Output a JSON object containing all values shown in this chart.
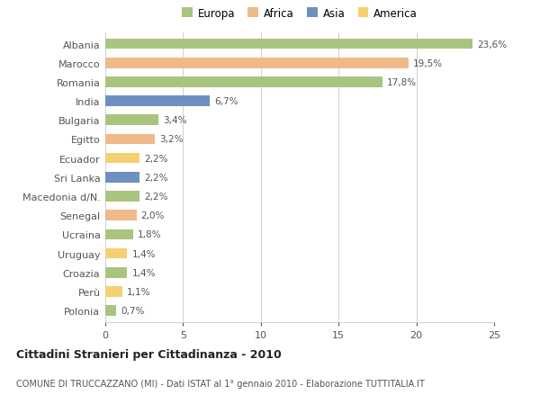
{
  "categories": [
    "Albania",
    "Marocco",
    "Romania",
    "India",
    "Bulgaria",
    "Egitto",
    "Ecuador",
    "Sri Lanka",
    "Macedonia d/N.",
    "Senegal",
    "Ucraina",
    "Uruguay",
    "Croazia",
    "Perù",
    "Polonia"
  ],
  "values": [
    23.6,
    19.5,
    17.8,
    6.7,
    3.4,
    3.2,
    2.2,
    2.2,
    2.2,
    2.0,
    1.8,
    1.4,
    1.4,
    1.1,
    0.7
  ],
  "labels": [
    "23,6%",
    "19,5%",
    "17,8%",
    "6,7%",
    "3,4%",
    "3,2%",
    "2,2%",
    "2,2%",
    "2,2%",
    "2,0%",
    "1,8%",
    "1,4%",
    "1,4%",
    "1,1%",
    "0,7%"
  ],
  "continents": [
    "Europa",
    "Africa",
    "Europa",
    "Asia",
    "Europa",
    "Africa",
    "America",
    "Asia",
    "Europa",
    "Africa",
    "Europa",
    "America",
    "Europa",
    "America",
    "Europa"
  ],
  "continent_colors": {
    "Europa": "#a8c47e",
    "Africa": "#f0b98a",
    "Asia": "#6e90c0",
    "America": "#f5d070"
  },
  "legend_order": [
    "Europa",
    "Africa",
    "Asia",
    "America"
  ],
  "title": "Cittadini Stranieri per Cittadinanza - 2010",
  "subtitle": "COMUNE DI TRUCCAZZANO (MI) - Dati ISTAT al 1° gennaio 2010 - Elaborazione TUTTITALIA.IT",
  "xlim": [
    0,
    25
  ],
  "xticks": [
    0,
    5,
    10,
    15,
    20,
    25
  ],
  "bg_color": "#ffffff",
  "grid_color": "#d0d0d0",
  "bar_height": 0.55
}
